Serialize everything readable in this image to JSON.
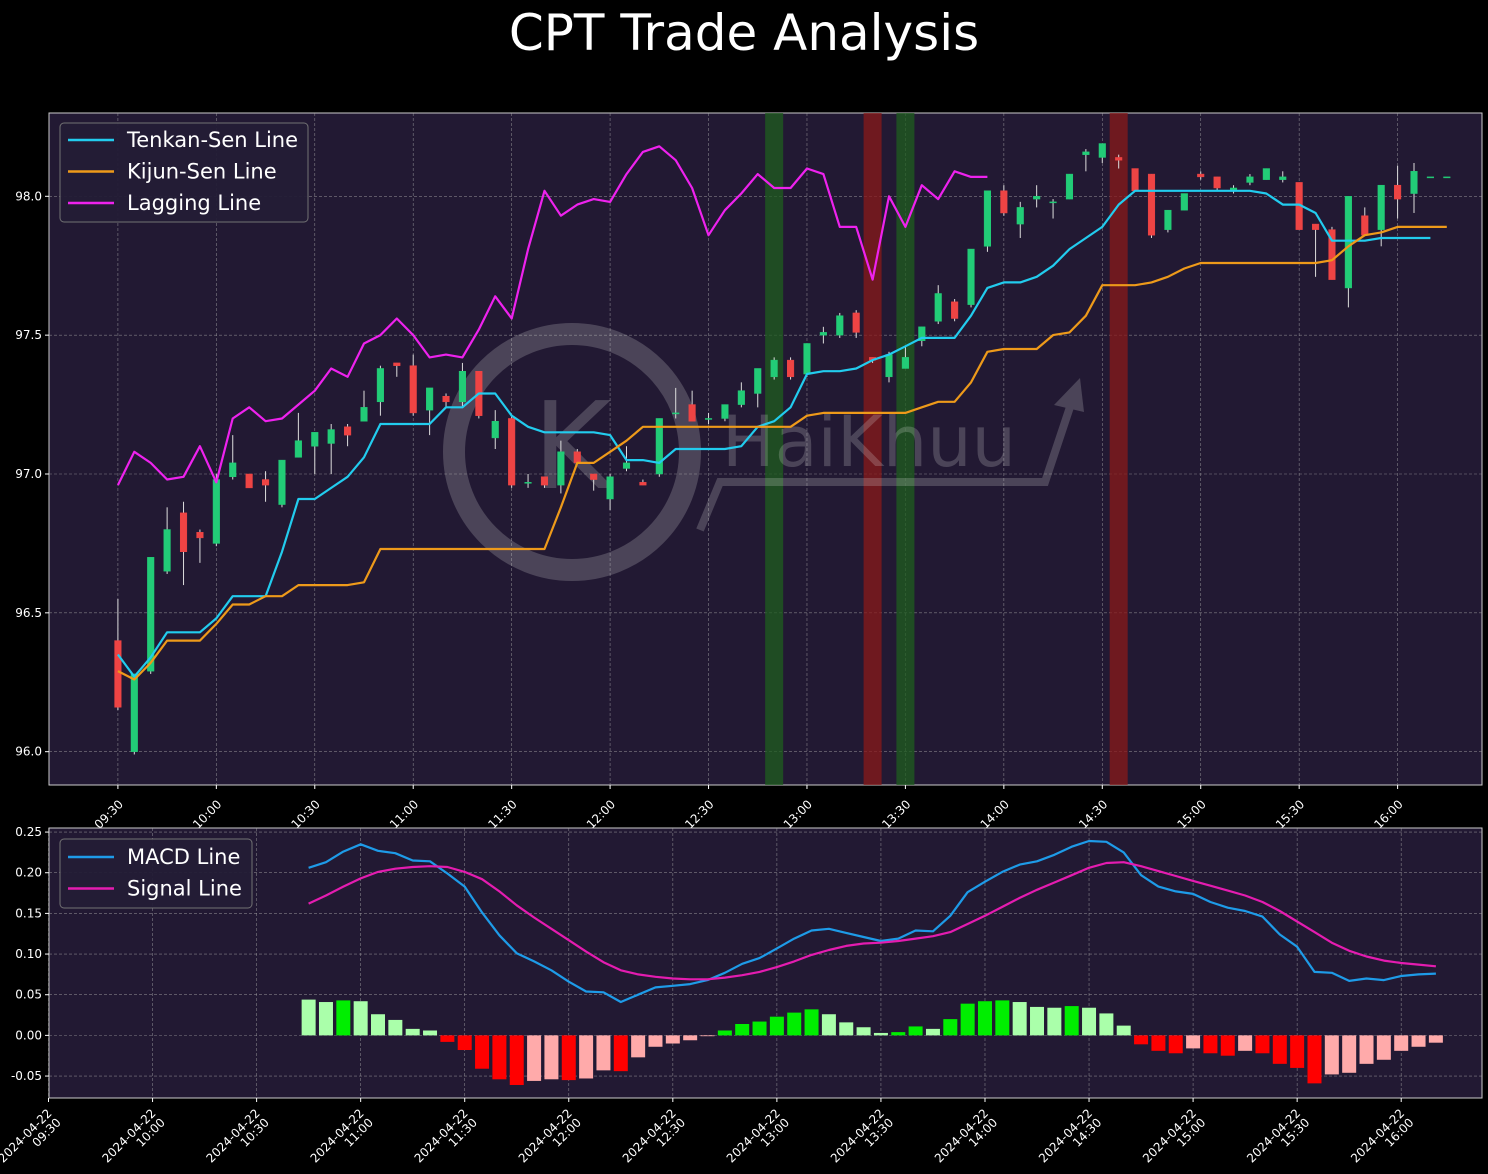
{
  "chart_data": [
    {
      "type": "candlestick",
      "title": "CPT Trade Analysis",
      "watermark": "HaiKhuu",
      "ylim": [
        95.88,
        98.3
      ],
      "yticks": [
        "96.0",
        "96.5",
        "97.0",
        "97.5",
        "98.0"
      ],
      "xticks": [
        "09:30",
        "10:00",
        "10:30",
        "11:00",
        "11:30",
        "12:00",
        "12:30",
        "13:00",
        "13:30",
        "14:00",
        "14:30",
        "15:00",
        "15:30",
        "16:00"
      ],
      "x_start": "09:30",
      "x_end": "16:00",
      "candle_interval_minutes": 5,
      "candles": [
        [
          96.4,
          96.55,
          96.15,
          96.16
        ],
        [
          96.0,
          96.28,
          95.99,
          96.28
        ],
        [
          96.29,
          96.7,
          96.28,
          96.7
        ],
        [
          96.65,
          96.88,
          96.64,
          96.8
        ],
        [
          96.86,
          96.9,
          96.6,
          96.72
        ],
        [
          96.79,
          96.8,
          96.68,
          96.77
        ],
        [
          96.75,
          97.0,
          96.74,
          96.98
        ],
        [
          96.99,
          97.14,
          96.98,
          97.04
        ],
        [
          97.0,
          97.0,
          96.95,
          96.95
        ],
        [
          96.98,
          97.01,
          96.9,
          96.96
        ],
        [
          96.89,
          97.05,
          96.88,
          97.05
        ],
        [
          97.06,
          97.22,
          97.06,
          97.12
        ],
        [
          97.1,
          97.15,
          97.0,
          97.15
        ],
        [
          97.11,
          97.18,
          97.0,
          97.16
        ],
        [
          97.17,
          97.18,
          97.1,
          97.14
        ],
        [
          97.19,
          97.3,
          97.19,
          97.24
        ],
        [
          97.26,
          97.39,
          97.21,
          97.38
        ],
        [
          97.4,
          97.4,
          97.35,
          97.39
        ],
        [
          97.39,
          97.43,
          97.21,
          97.22
        ],
        [
          97.23,
          97.3,
          97.14,
          97.31
        ],
        [
          97.28,
          97.29,
          97.24,
          97.26
        ],
        [
          97.26,
          97.4,
          97.24,
          97.37
        ],
        [
          97.37,
          97.37,
          97.2,
          97.21
        ],
        [
          97.13,
          97.23,
          97.09,
          97.19
        ],
        [
          97.2,
          97.21,
          96.95,
          96.96
        ],
        [
          96.97,
          97.0,
          96.95,
          96.97
        ],
        [
          96.99,
          96.99,
          96.95,
          96.96
        ],
        [
          96.96,
          97.12,
          96.93,
          97.08
        ],
        [
          97.08,
          97.09,
          97.04,
          97.04
        ],
        [
          97.0,
          97.0,
          96.94,
          96.98
        ],
        [
          96.91,
          97.0,
          96.87,
          96.99
        ],
        [
          97.02,
          97.1,
          97.01,
          97.04
        ],
        [
          96.97,
          96.98,
          96.96,
          96.96
        ],
        [
          97.0,
          97.2,
          96.99,
          97.2
        ],
        [
          97.22,
          97.31,
          97.2,
          97.22
        ],
        [
          97.25,
          97.3,
          97.19,
          97.19
        ],
        [
          97.2,
          97.22,
          97.18,
          97.2
        ],
        [
          97.2,
          97.25,
          97.19,
          97.25
        ],
        [
          97.25,
          97.33,
          97.24,
          97.3
        ],
        [
          97.29,
          97.38,
          97.24,
          97.38
        ],
        [
          97.35,
          97.42,
          97.34,
          97.41
        ],
        [
          97.41,
          97.42,
          97.34,
          97.35
        ],
        [
          97.36,
          97.47,
          97.35,
          97.47
        ],
        [
          97.5,
          97.53,
          97.47,
          97.51
        ],
        [
          97.5,
          97.58,
          97.49,
          97.57
        ],
        [
          97.58,
          97.59,
          97.49,
          97.51
        ],
        [
          97.42,
          97.42,
          97.4,
          97.41
        ],
        [
          97.35,
          97.44,
          97.33,
          97.43
        ],
        [
          97.38,
          97.46,
          97.38,
          97.42
        ],
        [
          97.48,
          97.53,
          97.46,
          97.53
        ],
        [
          97.55,
          97.68,
          97.54,
          97.65
        ],
        [
          97.62,
          97.63,
          97.55,
          97.56
        ],
        [
          97.61,
          97.81,
          97.6,
          97.81
        ],
        [
          97.82,
          98.02,
          97.8,
          98.02
        ],
        [
          98.02,
          98.04,
          97.93,
          97.94
        ],
        [
          97.9,
          97.98,
          97.85,
          97.96
        ],
        [
          97.99,
          98.04,
          97.96,
          98.0
        ],
        [
          97.98,
          97.99,
          97.92,
          97.98
        ],
        [
          97.99,
          98.08,
          97.99,
          98.08
        ],
        [
          98.15,
          98.17,
          98.09,
          98.16
        ],
        [
          98.14,
          98.19,
          98.12,
          98.19
        ],
        [
          98.14,
          98.15,
          98.1,
          98.13
        ],
        [
          98.1,
          98.1,
          98.02,
          98.02
        ],
        [
          98.08,
          98.08,
          97.85,
          97.86
        ],
        [
          97.88,
          97.95,
          97.87,
          97.95
        ],
        [
          97.95,
          98.01,
          97.95,
          98.01
        ],
        [
          98.08,
          98.09,
          98.06,
          98.07
        ],
        [
          98.07,
          98.07,
          98.02,
          98.03
        ],
        [
          98.02,
          98.04,
          98.01,
          98.03
        ],
        [
          98.05,
          98.08,
          98.04,
          98.07
        ],
        [
          98.06,
          98.1,
          98.06,
          98.1
        ],
        [
          98.06,
          98.09,
          98.05,
          98.07
        ],
        [
          98.05,
          98.05,
          97.88,
          97.88
        ],
        [
          97.9,
          97.9,
          97.71,
          97.88
        ],
        [
          97.88,
          97.89,
          97.7,
          97.7
        ],
        [
          97.67,
          98.0,
          97.6,
          98.0
        ],
        [
          97.93,
          97.96,
          97.86,
          97.86
        ],
        [
          97.88,
          98.04,
          97.82,
          98.04
        ],
        [
          98.04,
          98.11,
          97.92,
          97.99
        ],
        [
          98.01,
          98.12,
          97.94,
          98.09
        ],
        [
          98.07,
          98.07,
          98.07,
          98.07
        ],
        [
          98.07,
          98.07,
          98.07,
          98.07
        ]
      ],
      "series": [
        {
          "name": "Tenkan-Sen Line",
          "color": "#22ccee",
          "values": [
            96.35,
            96.27,
            96.34,
            96.43,
            96.43,
            96.43,
            96.48,
            96.56,
            96.56,
            96.56,
            96.72,
            96.91,
            96.91,
            96.95,
            96.99,
            97.06,
            97.18,
            97.18,
            97.18,
            97.18,
            97.24,
            97.24,
            97.29,
            97.29,
            97.21,
            97.17,
            97.15,
            97.15,
            97.15,
            97.15,
            97.14,
            97.05,
            97.05,
            97.04,
            97.09,
            97.09,
            97.09,
            97.09,
            97.1,
            97.17,
            97.19,
            97.24,
            97.36,
            97.37,
            97.37,
            97.38,
            97.41,
            97.43,
            97.46,
            97.49,
            97.49,
            97.49,
            97.57,
            97.67,
            97.69,
            97.69,
            97.71,
            97.75,
            97.81,
            97.85,
            97.89,
            97.97,
            98.02,
            98.02,
            98.02,
            98.02,
            98.02,
            98.02,
            98.02,
            98.02,
            98.01,
            97.97,
            97.97,
            97.94,
            97.84,
            97.84,
            97.84,
            97.85,
            97.85,
            97.85,
            97.85
          ]
        },
        {
          "name": "Kijun-Sen Line",
          "color": "#ee9a1a",
          "values": [
            96.29,
            96.26,
            96.32,
            96.4,
            96.4,
            96.4,
            96.46,
            96.53,
            96.53,
            96.56,
            96.56,
            96.6,
            96.6,
            96.6,
            96.6,
            96.61,
            96.73,
            96.73,
            96.73,
            96.73,
            96.73,
            96.73,
            96.73,
            96.73,
            96.73,
            96.73,
            96.73,
            96.88,
            97.04,
            97.04,
            97.08,
            97.12,
            97.17,
            97.17,
            97.17,
            97.17,
            97.17,
            97.17,
            97.17,
            97.17,
            97.17,
            97.17,
            97.21,
            97.22,
            97.22,
            97.22,
            97.22,
            97.22,
            97.22,
            97.24,
            97.26,
            97.26,
            97.33,
            97.44,
            97.45,
            97.45,
            97.45,
            97.5,
            97.51,
            97.57,
            97.68,
            97.68,
            97.68,
            97.69,
            97.71,
            97.74,
            97.76,
            97.76,
            97.76,
            97.76,
            97.76,
            97.76,
            97.76,
            97.76,
            97.77,
            97.82,
            97.86,
            97.87,
            97.89,
            97.89,
            97.89,
            97.89
          ]
        },
        {
          "name": "Lagging Line",
          "color": "#ee22ee",
          "values": [
            96.96,
            97.08,
            97.04,
            96.98,
            96.99,
            97.1,
            96.97,
            97.2,
            97.24,
            97.19,
            97.2,
            97.25,
            97.3,
            97.38,
            97.35,
            97.47,
            97.5,
            97.56,
            97.5,
            97.42,
            97.43,
            97.42,
            97.52,
            97.64,
            97.56,
            97.81,
            98.02,
            97.93,
            97.97,
            97.99,
            97.98,
            98.08,
            98.16,
            98.18,
            98.13,
            98.03,
            97.86,
            97.95,
            98.01,
            98.08,
            98.03,
            98.03,
            98.1,
            98.08,
            97.89,
            97.89,
            97.7,
            98.0,
            97.89,
            98.04,
            97.99,
            98.09,
            98.07,
            98.07
          ]
        }
      ],
      "highlight_bands": [
        {
          "start": 40,
          "end": 40,
          "color": "#1f5d1f"
        },
        {
          "start": 46,
          "end": 46,
          "color": "#8a1919"
        },
        {
          "start": 48,
          "end": 48,
          "color": "#1f5d1f"
        },
        {
          "start": 61,
          "end": 61,
          "color": "#8a1919"
        }
      ],
      "up_color": "#22cc77",
      "down_color": "#ee4444",
      "legend": "top-left",
      "grid": true
    },
    {
      "type": "bar+line",
      "ylim": [
        -0.077,
        0.255
      ],
      "yticks": [
        "0.25",
        "0.20",
        "0.15",
        "0.10",
        "0.05",
        "0.00",
        "-0.05"
      ],
      "xticks": [
        "2024-04-22\n09:30",
        "2024-04-22\n10:00",
        "2024-04-22\n10:30",
        "2024-04-22\n11:00",
        "2024-04-22\n11:30",
        "2024-04-22\n12:00",
        "2024-04-22\n12:30",
        "2024-04-22\n13:00",
        "2024-04-22\n13:30",
        "2024-04-22\n14:00",
        "2024-04-22\n14:30",
        "2024-04-22\n15:00",
        "2024-04-22\n15:30",
        "2024-04-22\n16:00"
      ],
      "x_start": "2024-04-22 10:45",
      "series": [
        {
          "name": "MACD Line",
          "color": "#1e9be8",
          "values": [
            0.206,
            0.213,
            0.226,
            0.235,
            0.227,
            0.224,
            0.215,
            0.214,
            0.199,
            0.183,
            0.151,
            0.123,
            0.101,
            0.091,
            0.08,
            0.066,
            0.054,
            0.053,
            0.041,
            0.05,
            0.059,
            0.061,
            0.063,
            0.068,
            0.077,
            0.088,
            0.095,
            0.107,
            0.119,
            0.129,
            0.131,
            0.126,
            0.121,
            0.116,
            0.119,
            0.129,
            0.128,
            0.147,
            0.176,
            0.189,
            0.201,
            0.21,
            0.214,
            0.222,
            0.232,
            0.239,
            0.238,
            0.225,
            0.197,
            0.183,
            0.177,
            0.174,
            0.164,
            0.157,
            0.153,
            0.146,
            0.124,
            0.109,
            0.078,
            0.077,
            0.067,
            0.07,
            0.068,
            0.073,
            0.075,
            0.076
          ]
        },
        {
          "name": "Signal Line",
          "color": "#e41cb0",
          "values": [
            0.162,
            0.172,
            0.183,
            0.193,
            0.201,
            0.205,
            0.207,
            0.208,
            0.207,
            0.201,
            0.192,
            0.177,
            0.16,
            0.145,
            0.131,
            0.117,
            0.103,
            0.09,
            0.08,
            0.075,
            0.072,
            0.07,
            0.069,
            0.069,
            0.071,
            0.074,
            0.078,
            0.084,
            0.091,
            0.099,
            0.105,
            0.11,
            0.113,
            0.114,
            0.116,
            0.119,
            0.122,
            0.127,
            0.137,
            0.147,
            0.158,
            0.169,
            0.179,
            0.188,
            0.197,
            0.206,
            0.212,
            0.213,
            0.208,
            0.202,
            0.196,
            0.19,
            0.184,
            0.178,
            0.172,
            0.164,
            0.153,
            0.14,
            0.127,
            0.114,
            0.104,
            0.097,
            0.092,
            0.089,
            0.087,
            0.085
          ]
        }
      ],
      "histogram": [
        0.044,
        0.041,
        0.043,
        0.042,
        0.026,
        0.019,
        0.008,
        0.006,
        -0.008,
        -0.018,
        -0.041,
        -0.054,
        -0.061,
        -0.056,
        -0.054,
        -0.055,
        -0.053,
        -0.043,
        -0.044,
        -0.027,
        -0.014,
        -0.01,
        -0.006,
        -0.001,
        0.006,
        0.014,
        0.017,
        0.023,
        0.028,
        0.032,
        0.026,
        0.016,
        0.01,
        0.003,
        0.004,
        0.011,
        0.008,
        0.02,
        0.039,
        0.042,
        0.043,
        0.041,
        0.035,
        0.034,
        0.036,
        0.034,
        0.027,
        0.012,
        -0.011,
        -0.019,
        -0.022,
        -0.016,
        -0.022,
        -0.025,
        -0.019,
        -0.022,
        -0.035,
        -0.04,
        -0.059,
        -0.048,
        -0.046,
        -0.035,
        -0.03,
        -0.019,
        -0.014,
        -0.009
      ],
      "histogram_colors": {
        "strong_pos": "#00ee00",
        "weak_pos": "#aaffaa",
        "strong_neg": "#ff0000",
        "weak_neg": "#ffaaaa"
      },
      "legend": "top-left",
      "grid": true
    }
  ]
}
